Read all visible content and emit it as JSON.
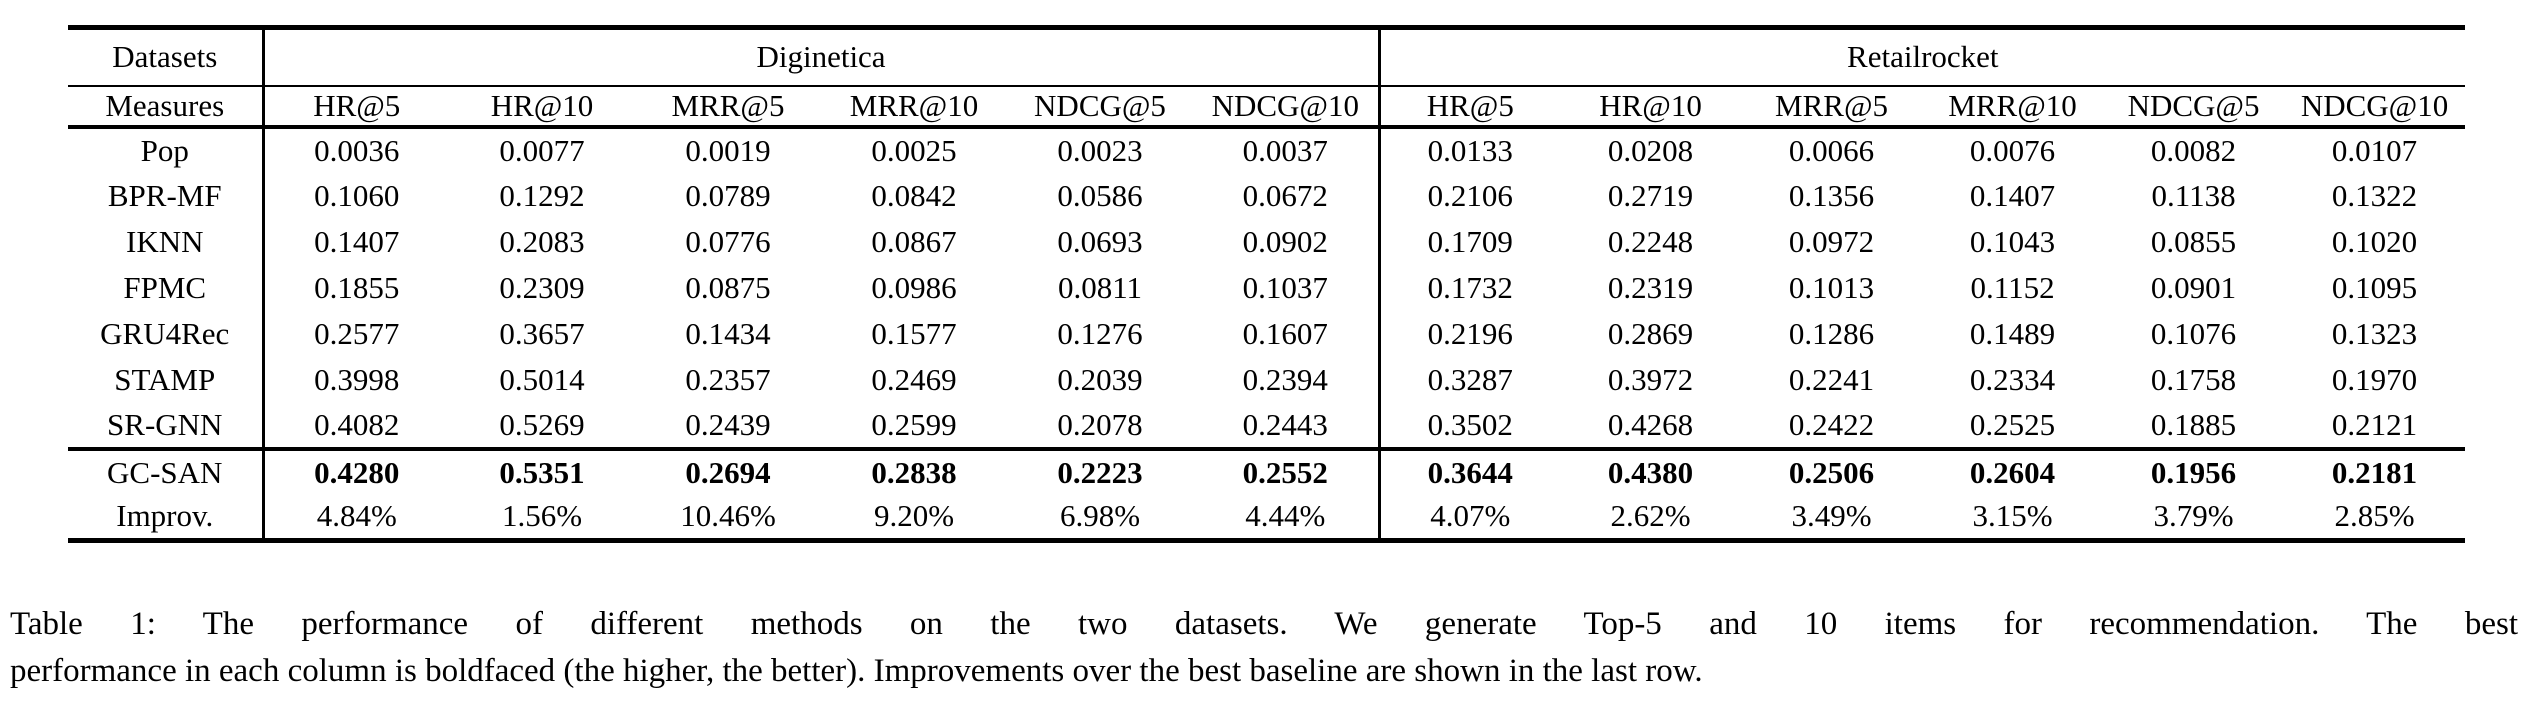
{
  "page": {
    "background_color": "#ffffff",
    "text_color": "#000000"
  },
  "table": {
    "corner": {
      "datasets_label": "Datasets",
      "measures_label": "Measures"
    },
    "dataset_groups": [
      {
        "name": "Diginetica"
      },
      {
        "name": "Retailrocket"
      }
    ],
    "measures": [
      "HR@5",
      "HR@10",
      "MRR@5",
      "MRR@10",
      "NDCG@5",
      "NDCG@10",
      "HR@5",
      "HR@10",
      "MRR@5",
      "MRR@10",
      "NDCG@5",
      "NDCG@10"
    ],
    "rows": [
      {
        "method": "Pop",
        "bold": false,
        "section_start": false,
        "values": [
          "0.0036",
          "0.0077",
          "0.0019",
          "0.0025",
          "0.0023",
          "0.0037",
          "0.0133",
          "0.0208",
          "0.0066",
          "0.0076",
          "0.0082",
          "0.0107"
        ]
      },
      {
        "method": "BPR-MF",
        "bold": false,
        "section_start": false,
        "values": [
          "0.1060",
          "0.1292",
          "0.0789",
          "0.0842",
          "0.0586",
          "0.0672",
          "0.2106",
          "0.2719",
          "0.1356",
          "0.1407",
          "0.1138",
          "0.1322"
        ]
      },
      {
        "method": "IKNN",
        "bold": false,
        "section_start": false,
        "values": [
          "0.1407",
          "0.2083",
          "0.0776",
          "0.0867",
          "0.0693",
          "0.0902",
          "0.1709",
          "0.2248",
          "0.0972",
          "0.1043",
          "0.0855",
          "0.1020"
        ]
      },
      {
        "method": "FPMC",
        "bold": false,
        "section_start": false,
        "values": [
          "0.1855",
          "0.2309",
          "0.0875",
          "0.0986",
          "0.0811",
          "0.1037",
          "0.1732",
          "0.2319",
          "0.1013",
          "0.1152",
          "0.0901",
          "0.1095"
        ]
      },
      {
        "method": "GRU4Rec",
        "bold": false,
        "section_start": false,
        "values": [
          "0.2577",
          "0.3657",
          "0.1434",
          "0.1577",
          "0.1276",
          "0.1607",
          "0.2196",
          "0.2869",
          "0.1286",
          "0.1489",
          "0.1076",
          "0.1323"
        ]
      },
      {
        "method": "STAMP",
        "bold": false,
        "section_start": false,
        "values": [
          "0.3998",
          "0.5014",
          "0.2357",
          "0.2469",
          "0.2039",
          "0.2394",
          "0.3287",
          "0.3972",
          "0.2241",
          "0.2334",
          "0.1758",
          "0.1970"
        ]
      },
      {
        "method": "SR-GNN",
        "bold": false,
        "section_start": false,
        "values": [
          "0.4082",
          "0.5269",
          "0.2439",
          "0.2599",
          "0.2078",
          "0.2443",
          "0.3502",
          "0.4268",
          "0.2422",
          "0.2525",
          "0.1885",
          "0.2121"
        ]
      },
      {
        "method": "GC-SAN",
        "bold": true,
        "section_start": true,
        "values": [
          "0.4280",
          "0.5351",
          "0.2694",
          "0.2838",
          "0.2223",
          "0.2552",
          "0.3644",
          "0.4380",
          "0.2506",
          "0.2604",
          "0.1956",
          "0.2181"
        ]
      },
      {
        "method": "Improv.",
        "bold": false,
        "section_start": false,
        "values": [
          "4.84%",
          "1.56%",
          "10.46%",
          "9.20%",
          "6.98%",
          "4.44%",
          "4.07%",
          "2.62%",
          "3.49%",
          "3.15%",
          "3.79%",
          "2.85%"
        ]
      }
    ]
  },
  "caption": {
    "lines": [
      "Table 1: The performance of different methods on the two datasets. We generate Top-5 and 10 items for recommendation. The best",
      "performance in each column is boldfaced (the higher, the better). Improvements over the best baseline are shown in the last row."
    ]
  }
}
